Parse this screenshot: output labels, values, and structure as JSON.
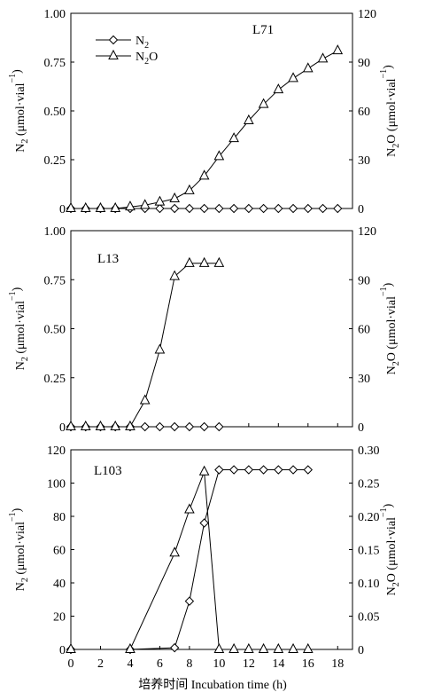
{
  "figure": {
    "xlabel": "培养时间 Incubation time (h)",
    "legend": {
      "position": "top-left of top panel",
      "entries": [
        {
          "sub_base": "N",
          "sub": "2",
          "sub_tail": "",
          "marker": "diamond"
        },
        {
          "sub_base": "N",
          "sub": "2",
          "sub_tail": "O",
          "marker": "triangle"
        }
      ]
    },
    "left_axis_title": {
      "pre": "N",
      "sub": "2",
      "post": " (μmol·vial",
      "sup": "−1",
      "tail": ")"
    },
    "right_axis_title": {
      "pre": "N",
      "sub": "2",
      "post": "O (μmol·vial",
      "sup": "−1",
      "tail": ")"
    }
  },
  "chart_data": [
    {
      "type": "line",
      "title": "L71",
      "xlim": [
        0,
        19
      ],
      "xticks": [
        0,
        2,
        4,
        6,
        8,
        10,
        12,
        14,
        16,
        18
      ],
      "y_left": {
        "lim": [
          0,
          1
        ],
        "ticks": [
          "0",
          "0.25",
          "0.50",
          "0.75",
          "1.00"
        ],
        "tick_values": [
          0,
          0.25,
          0.5,
          0.75,
          1.0
        ]
      },
      "y_right": {
        "lim": [
          0,
          120
        ],
        "ticks": [
          "0",
          "30",
          "60",
          "90",
          "120"
        ],
        "tick_values": [
          0,
          30,
          60,
          90,
          120
        ]
      },
      "series": [
        {
          "name": "N2",
          "axis": "left",
          "marker": "diamond",
          "x": [
            0,
            1,
            2,
            3,
            4,
            5,
            6,
            7,
            8,
            9,
            10,
            11,
            12,
            13,
            14,
            15,
            16,
            17,
            18
          ],
          "values": [
            0,
            0,
            0,
            0,
            0,
            0,
            0,
            0,
            0,
            0,
            0,
            0,
            0,
            0,
            0,
            0,
            0,
            0,
            0
          ]
        },
        {
          "name": "N2O",
          "axis": "right",
          "marker": "triangle",
          "x": [
            0,
            1,
            2,
            3,
            4,
            5,
            6,
            7,
            8,
            9,
            10,
            11,
            12,
            13,
            14,
            15,
            16,
            17,
            18
          ],
          "values": [
            0,
            0,
            0,
            0,
            1,
            2,
            4,
            6,
            11,
            20,
            32,
            43,
            54,
            64,
            73,
            80,
            86,
            92,
            97
          ]
        }
      ]
    },
    {
      "type": "line",
      "title": "L13",
      "xlim": [
        0,
        19
      ],
      "xticks": [
        0,
        2,
        4,
        6,
        8,
        10,
        12,
        14,
        16,
        18
      ],
      "y_left": {
        "lim": [
          0,
          1
        ],
        "ticks": [
          "0",
          "0.25",
          "0.50",
          "0.75",
          "1.00"
        ],
        "tick_values": [
          0,
          0.25,
          0.5,
          0.75,
          1.0
        ]
      },
      "y_right": {
        "lim": [
          0,
          120
        ],
        "ticks": [
          "0",
          "30",
          "60",
          "90",
          "120"
        ],
        "tick_values": [
          0,
          30,
          60,
          90,
          120
        ]
      },
      "series": [
        {
          "name": "N2",
          "axis": "left",
          "marker": "diamond",
          "x": [
            0,
            1,
            2,
            3,
            4,
            5,
            6,
            7,
            8,
            9,
            10
          ],
          "values": [
            0,
            0,
            0,
            0,
            0,
            0,
            0,
            0,
            0,
            0,
            0
          ]
        },
        {
          "name": "N2O",
          "axis": "right",
          "marker": "triangle",
          "x": [
            0,
            1,
            2,
            3,
            4,
            5,
            6,
            7,
            8,
            9,
            10
          ],
          "values": [
            0,
            0,
            0,
            0,
            0,
            16,
            47,
            92,
            100,
            100,
            100
          ]
        }
      ]
    },
    {
      "type": "line",
      "title": "L103",
      "xlim": [
        0,
        19
      ],
      "xticks": [
        0,
        2,
        4,
        6,
        8,
        10,
        12,
        14,
        16,
        18
      ],
      "y_left": {
        "lim": [
          0,
          120
        ],
        "ticks": [
          "0",
          "20",
          "40",
          "60",
          "80",
          "100",
          "120"
        ],
        "tick_values": [
          0,
          20,
          40,
          60,
          80,
          100,
          120
        ]
      },
      "y_right": {
        "lim": [
          0,
          0.3
        ],
        "ticks": [
          "0",
          "0.05",
          "0.10",
          "0.15",
          "0.20",
          "0.25",
          "0.30"
        ],
        "tick_values": [
          0,
          0.05,
          0.1,
          0.15,
          0.2,
          0.25,
          0.3
        ]
      },
      "series": [
        {
          "name": "N2",
          "axis": "left",
          "marker": "diamond",
          "x": [
            0,
            4,
            7,
            8,
            9,
            10,
            11,
            12,
            13,
            14,
            15,
            16
          ],
          "values": [
            0,
            0,
            1,
            29,
            76,
            108,
            108,
            108,
            108,
            108,
            108,
            108
          ]
        },
        {
          "name": "N2O",
          "axis": "right",
          "marker": "triangle",
          "x": [
            0,
            4,
            7,
            8,
            9,
            10,
            11,
            12,
            13,
            14,
            15,
            16
          ],
          "values": [
            0,
            0,
            0.145,
            0.21,
            0.267,
            0,
            0,
            0,
            0,
            0,
            0,
            0
          ]
        }
      ]
    }
  ]
}
